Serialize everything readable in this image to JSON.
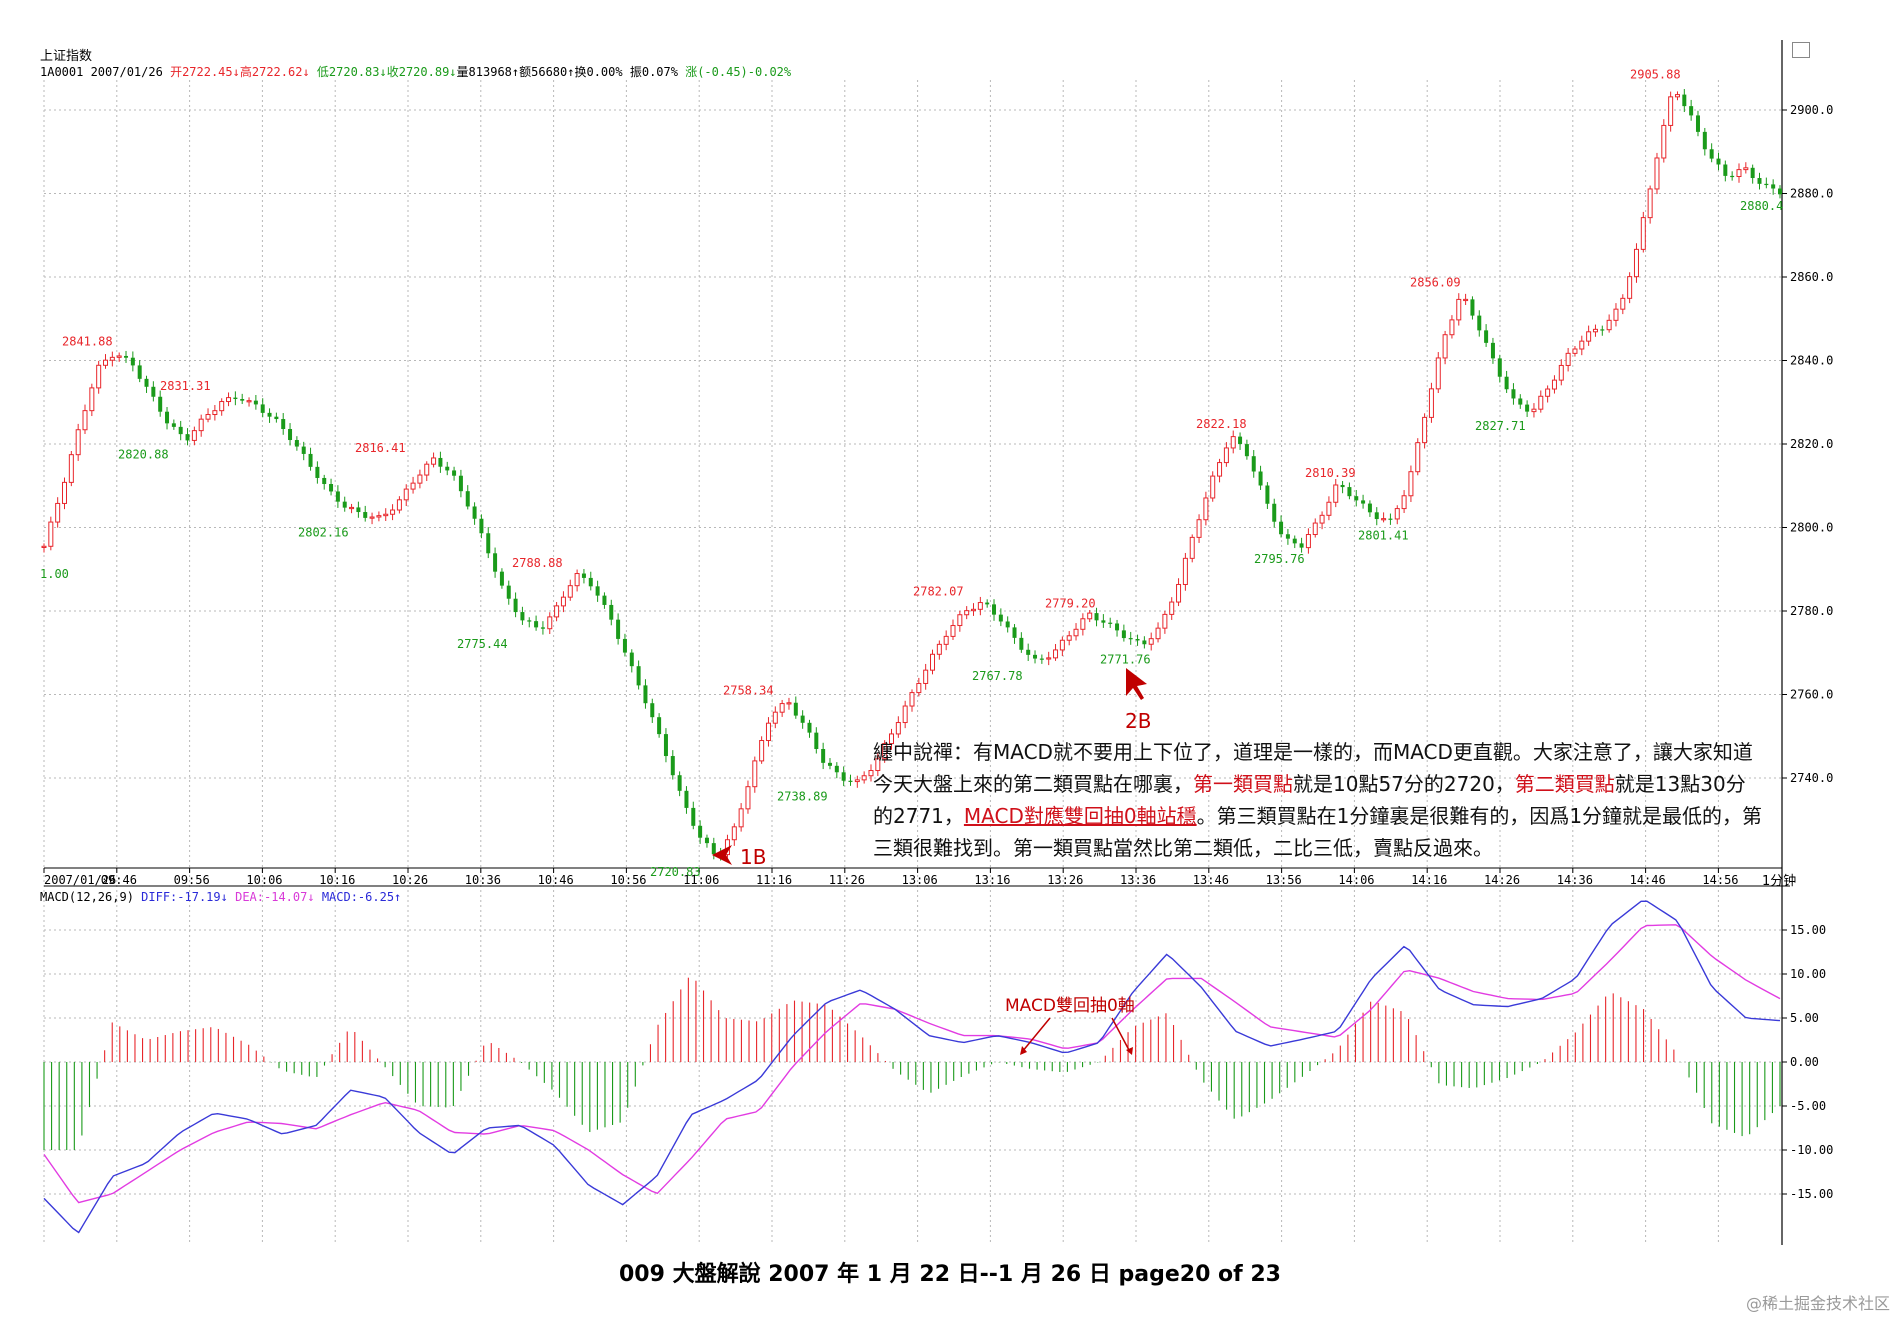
{
  "header": {
    "index_name": "上证指数",
    "info_code_date": "1A0001 2007/01/26",
    "info_open": "开2722.45↓",
    "info_high": "高2722.62↓",
    "info_low": "低2720.83↓",
    "info_close": "收2720.89↓",
    "info_volume": "量813968↑",
    "info_amount": "额56680↑",
    "info_turnover": "换0.00%",
    "info_amplitude": "振0.07%",
    "info_change": "涨(-0.45)-0.02%",
    "corner_icon": "calendar-icon"
  },
  "macd_header": {
    "label": "MACD(12,26,9)",
    "diff": "DIFF:-17.19↓",
    "dea": "DEA:-14.07↓",
    "macd": "MACD:-6.25↑"
  },
  "timeframe_label": "1分钟",
  "colors": {
    "up": "#e8262b",
    "down": "#1a9a1a",
    "diff_line": "#3a3ad8",
    "dea_line": "#e23ce2",
    "annotation": "#c00000",
    "grid": "#b8b8b8"
  },
  "chart_data": [
    {
      "type": "candlestick",
      "title": "上证指数 1分钟",
      "x_ticks": [
        "2007/01/26",
        "09:46",
        "09:56",
        "10:06",
        "10:16",
        "10:26",
        "10:36",
        "10:46",
        "10:56",
        "11:06",
        "11:16",
        "11:26",
        "13:06",
        "13:16",
        "13:26",
        "13:36",
        "13:46",
        "13:56",
        "14:06",
        "14:16",
        "14:26",
        "14:36",
        "14:46",
        "14:56"
      ],
      "y_ticks": [
        "2740.0",
        "2760.0",
        "2780.0",
        "2800.0",
        "2820.0",
        "2840.0",
        "2860.0",
        "2880.0",
        "2900.0"
      ],
      "ylim": [
        2720,
        2905.88
      ],
      "close_series": [
        2795.5,
        2809,
        2824,
        2838,
        2841.88,
        2839,
        2832,
        2825,
        2820.88,
        2826,
        2830,
        2831.31,
        2829,
        2826,
        2821,
        2815,
        2809,
        2805,
        2803,
        2802.16,
        2806,
        2812,
        2816.41,
        2813,
        2805,
        2795,
        2784,
        2778,
        2775.44,
        2781,
        2788.88,
        2786,
        2778,
        2768,
        2758,
        2747,
        2735,
        2726,
        2720.83,
        2728,
        2742,
        2755,
        2758.34,
        2752,
        2744,
        2740,
        2738.89,
        2744,
        2752,
        2760,
        2768,
        2775,
        2780,
        2782.07,
        2778,
        2772,
        2767.78,
        2770,
        2775,
        2779.2,
        2777,
        2774,
        2771.76,
        2776,
        2786,
        2800,
        2812,
        2822.18,
        2817,
        2806,
        2797,
        2795.76,
        2802,
        2810.39,
        2807,
        2803,
        2801.41,
        2810,
        2828,
        2845,
        2856.09,
        2848,
        2838,
        2830,
        2827.71,
        2834,
        2841,
        2846,
        2848,
        2853,
        2868,
        2888,
        2905.88,
        2898,
        2889,
        2884,
        2886,
        2882,
        2880.4
      ],
      "peak_labels": [
        "2841.88",
        "2831.31",
        "2816.41",
        "2788.88",
        "2758.34",
        "2782.07",
        "2779.20",
        "2822.18",
        "2810.39",
        "2856.09",
        "2905.88"
      ],
      "trough_labels": [
        "2820.88",
        "2802.16",
        "2775.44",
        "2720.83",
        "2738.89",
        "2767.78",
        "2771.76",
        "2795.76",
        "2801.41",
        "2827.71",
        "2880.4"
      ],
      "left_edge_label": "1.00",
      "annotations": [
        "1B",
        "2B"
      ]
    },
    {
      "type": "macd",
      "title": "MACD(12,26,9)",
      "y_ticks": [
        "-15.00",
        "-10.00",
        "-5.00",
        "0.00",
        "5.00",
        "10.00",
        "15.00"
      ],
      "ylim": [
        -20,
        17
      ],
      "series": [
        {
          "name": "DIFF",
          "values": [
            -15.5,
            -19.5,
            -13,
            -11.5,
            -8,
            -5.8,
            -6.5,
            -8.2,
            -7.2,
            -3.2,
            -4,
            -8,
            -10.5,
            -7.5,
            -7.2,
            -9.5,
            -14,
            -16.2,
            -13,
            -6,
            -4.3,
            -2,
            3,
            6.8,
            8.2,
            6,
            3,
            2.2,
            3,
            2.2,
            1,
            2.2,
            8,
            12.3,
            8.5,
            3.5,
            1.8,
            2.6,
            3.5,
            9.5,
            13.3,
            8.2,
            6.5,
            6.3,
            7.2,
            9.5,
            15.5,
            18.5,
            16,
            8.5,
            5,
            4.7
          ]
        },
        {
          "name": "DEA",
          "values": [
            -10.5,
            -16,
            -15,
            -12.5,
            -10,
            -8,
            -6.8,
            -7,
            -7.6,
            -6,
            -4.6,
            -5.5,
            -8,
            -8.2,
            -7.2,
            -7.8,
            -10,
            -12.8,
            -15,
            -11,
            -6.5,
            -5.6,
            -0.5,
            3.5,
            6.7,
            6,
            4.4,
            3,
            3,
            2.6,
            1.5,
            2.2,
            6,
            9.5,
            9.5,
            6.8,
            4,
            3.4,
            2.8,
            6,
            10.5,
            9.5,
            8,
            7.2,
            7.1,
            7.8,
            11.5,
            15.5,
            15.6,
            12,
            9.3,
            7.2
          ]
        },
        {
          "name": "MACD",
          "values": [
            -10,
            -10,
            4.5,
            2.5,
            3.5,
            4,
            2,
            -1,
            -1.8,
            4,
            -0.5,
            -5,
            -5.2,
            2.5,
            0,
            -3.4,
            -8,
            -6.8,
            4,
            10,
            5,
            4.6,
            7,
            6.5,
            3,
            -1,
            -3.6,
            -1.6,
            0,
            -0.8,
            -1.2,
            0,
            4,
            5.6,
            -2,
            -6.6,
            -4.4,
            -1.6,
            1.4,
            7,
            5.6,
            -2.6,
            -3,
            -1.8,
            0,
            3.4,
            8,
            6,
            0.8,
            -7,
            -8.6,
            -5
          ]
        }
      ],
      "callout": "MACD雙回抽0軸"
    }
  ],
  "note": {
    "part1": "纏中說禪：有MACD就不要用上下位了，道理是一樣的，而MACD更直觀。大家注意了，讓大家知道今天大盤上來的第二類買點在哪裏，",
    "part2": "第一類買點",
    "part3": "就是10點57分的2720，",
    "part4": "第二類買點",
    "part5": "就是13點30分的2771，",
    "part6": "MACD對應雙回抽0軸站穩",
    "part7": "。第三類買點在1分鐘裏是很難有的，因爲1分鐘就是最低的，第三類很難找到。第一類買點當然比第二類低，二比三低，賣點反過來。"
  },
  "footer": "009  大盤解說 2007 年 1 月 22 日--1 月 26 日    page20 of 23",
  "watermark": "@稀土掘金技术社区"
}
